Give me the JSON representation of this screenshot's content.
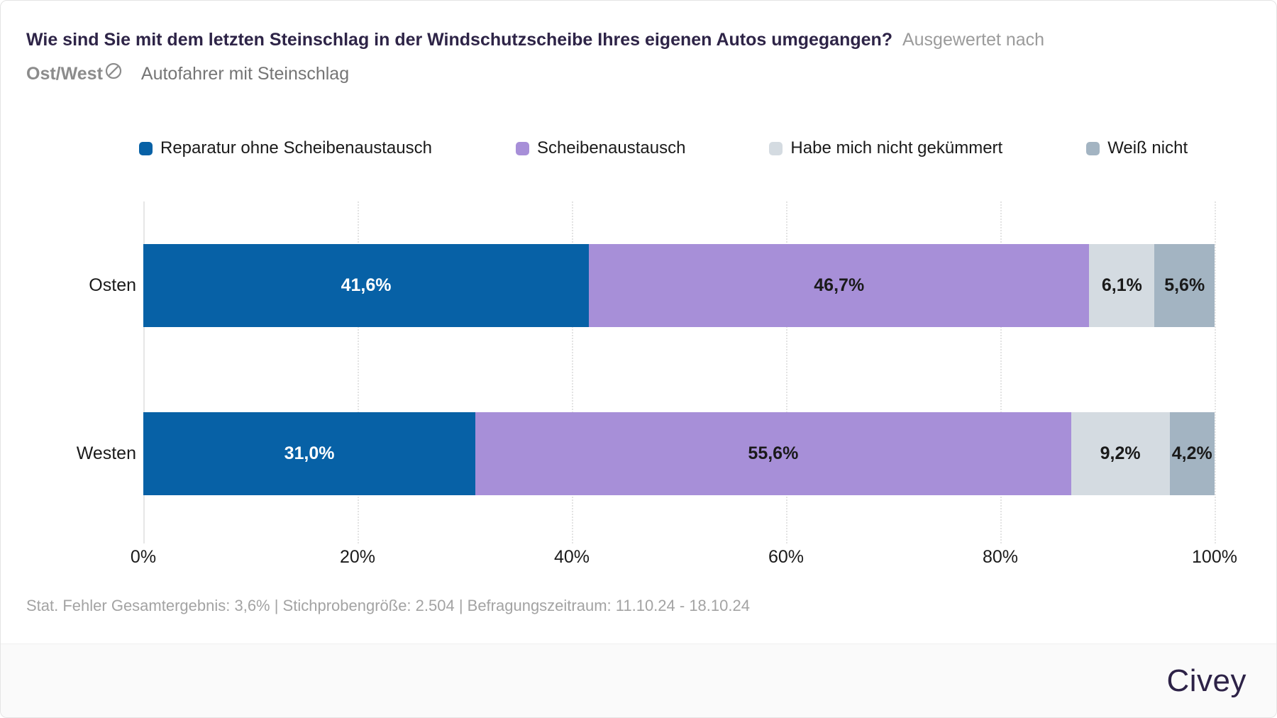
{
  "header": {
    "question": "Wie sind Sie mit dem letzten Steinschlag in der Windschutzscheibe Ihres eigenen Autos umgegangen?",
    "evaluated_by_label": "Ausgewertet nach",
    "evaluated_by_value": "Ost/West",
    "audience": "Autofahrer mit Steinschlag",
    "slash_icon": "crossed-circle"
  },
  "chart_data": {
    "type": "bar",
    "variant": "horizontal_stacked",
    "categories": [
      "Osten",
      "Westen"
    ],
    "series": [
      {
        "name": "Reparatur ohne Scheibenaustausch",
        "color": "#0761A6",
        "label_color": "#ffffff",
        "values": [
          41.6,
          31.0
        ],
        "labels": [
          "41,6%",
          "31,0%"
        ]
      },
      {
        "name": "Scheibenaustausch",
        "color": "#A78FD8",
        "label_color": "#1a1a1a",
        "values": [
          46.7,
          55.6
        ],
        "labels": [
          "46,7%",
          "55,6%"
        ]
      },
      {
        "name": "Habe mich nicht gekümmert",
        "color": "#D4DBE1",
        "label_color": "#1a1a1a",
        "values": [
          6.1,
          9.2
        ],
        "labels": [
          "6,1%",
          "9,2%"
        ]
      },
      {
        "name": "Weiß nicht",
        "color": "#A3B4C2",
        "label_color": "#1a1a1a",
        "values": [
          5.6,
          4.2
        ],
        "labels": [
          "5,6%",
          "4,2%"
        ]
      }
    ],
    "x_ticks": [
      "0%",
      "20%",
      "40%",
      "60%",
      "80%",
      "100%"
    ],
    "xlim": [
      0,
      100
    ],
    "grid": "vertical-dotted",
    "legend_position": "top"
  },
  "footer": {
    "stats": "Stat. Fehler Gesamtergebnis: 3,6% | Stichprobengröße: 2.504 | Befragungszeitraum: 11.10.24 - 18.10.24",
    "brand": "Civey"
  }
}
